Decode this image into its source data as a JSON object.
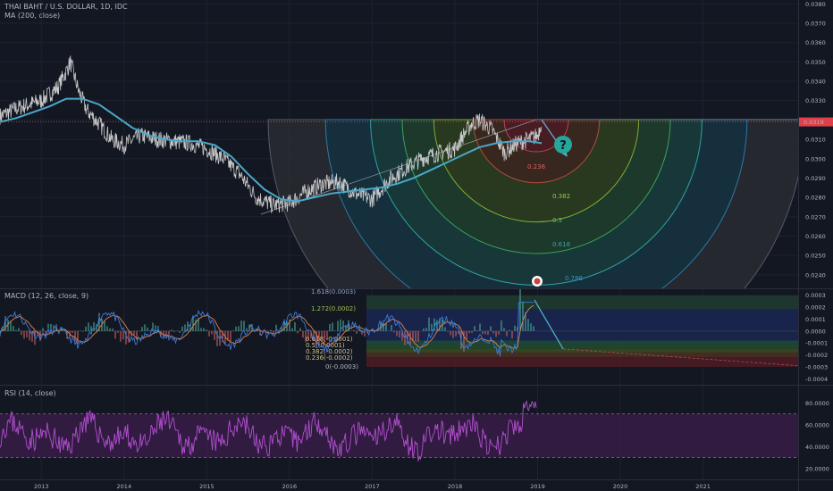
{
  "header": {
    "symbol_title": "THAI BAHT / U.S. DOLLAR, 1D, IDC",
    "ma_title": "MA (200, close)",
    "macd_title": "MACD (12, 26, close, 9)",
    "rsi_title": "RSI (14, close)"
  },
  "current_price_label": "0.0319",
  "question_mark": "?",
  "colors": {
    "background": "#131722",
    "grid": "#1e2230",
    "price_line": "#c8c8c8",
    "ma_line": "#4aa8c8",
    "macd_line": "#3c7bd6",
    "signal_line": "#e0824a",
    "hist_up": "#4fb9a6",
    "hist_down": "#e06767",
    "rsi_line": "#b34fd0",
    "rsi_band": "#3a1d4a",
    "marker_teal": "#26a69a"
  },
  "chart_data": [
    {
      "type": "line",
      "panel": "price",
      "title": "THAI BAHT / U.S. DOLLAR, 1D, IDC",
      "x_ticks": [
        "2013",
        "2014",
        "2015",
        "2016",
        "2017",
        "2018",
        "2019",
        "2020",
        "2021"
      ],
      "y_ticks": [
        "0.0380",
        "0.0370",
        "0.0360",
        "0.0350",
        "0.0340",
        "0.0330",
        "0.0320",
        "0.0310",
        "0.0300",
        "0.0290",
        "0.0280",
        "0.0270",
        "0.0260",
        "0.0250",
        "0.0240"
      ],
      "ylim": [
        0.0233,
        0.0382
      ],
      "xlim": [
        2012.5,
        2022.15
      ],
      "series": [
        {
          "name": "close",
          "x": [
            2012.5,
            2012.7,
            2012.85,
            2013.0,
            2013.2,
            2013.3,
            2013.35,
            2013.45,
            2013.55,
            2013.7,
            2013.85,
            2014.0,
            2014.2,
            2014.4,
            2014.6,
            2014.8,
            2015.0,
            2015.2,
            2015.4,
            2015.6,
            2015.8,
            2016.0,
            2016.2,
            2016.4,
            2016.6,
            2016.8,
            2017.0,
            2017.2,
            2017.4,
            2017.6,
            2017.8,
            2018.0,
            2018.1,
            2018.2,
            2018.3,
            2018.45,
            2018.6,
            2018.75,
            2018.9,
            2019.0,
            2019.05
          ],
          "values": [
            0.0322,
            0.0326,
            0.0328,
            0.033,
            0.0337,
            0.0345,
            0.035,
            0.0335,
            0.0325,
            0.0318,
            0.031,
            0.0307,
            0.0312,
            0.031,
            0.0309,
            0.0308,
            0.0305,
            0.03,
            0.0292,
            0.028,
            0.0276,
            0.0277,
            0.0283,
            0.0287,
            0.0288,
            0.0282,
            0.0279,
            0.0289,
            0.0295,
            0.03,
            0.0303,
            0.0305,
            0.0312,
            0.0318,
            0.032,
            0.0315,
            0.0303,
            0.0308,
            0.031,
            0.0312,
            0.032
          ]
        },
        {
          "name": "MA (200, close)",
          "x": [
            2012.5,
            2012.7,
            2012.9,
            2013.1,
            2013.3,
            2013.5,
            2013.7,
            2013.9,
            2014.1,
            2014.3,
            2014.5,
            2014.7,
            2014.9,
            2015.1,
            2015.3,
            2015.5,
            2015.7,
            2015.9,
            2016.1,
            2016.3,
            2016.5,
            2016.7,
            2016.9,
            2017.1,
            2017.3,
            2017.5,
            2017.7,
            2017.9,
            2018.1,
            2018.3,
            2018.5,
            2018.7,
            2018.9,
            2019.05
          ],
          "values": [
            0.0319,
            0.0321,
            0.0324,
            0.0327,
            0.0331,
            0.0331,
            0.0328,
            0.0322,
            0.0316,
            0.0312,
            0.031,
            0.0309,
            0.0309,
            0.0307,
            0.0301,
            0.0292,
            0.0284,
            0.0279,
            0.0278,
            0.028,
            0.0282,
            0.0283,
            0.0284,
            0.0285,
            0.0287,
            0.029,
            0.0294,
            0.0298,
            0.0302,
            0.0306,
            0.0308,
            0.0309,
            0.0309,
            0.0308
          ]
        }
      ],
      "fib_levels": [
        "0.236",
        "0.382",
        "0.5",
        "0.618",
        "0.786"
      ]
    },
    {
      "type": "line",
      "panel": "macd",
      "title": "MACD (12, 26, close, 9)",
      "y_ticks": [
        "0.0003",
        "0.0002",
        "0.0001",
        "0.0000",
        "-0.0001",
        "-0.0002",
        "-0.0003",
        "-0.0004"
      ],
      "ylim": [
        -0.00045,
        0.00035
      ],
      "fib_labels": [
        "1.618(0.0003)",
        "1.272(0.0002)",
        "0.618(-0.0001)",
        "0.5(-0.0001)",
        "0.382(-0.0002)",
        "0.236(-0.0002)",
        "0(-0.0003)"
      ]
    },
    {
      "type": "line",
      "panel": "rsi",
      "title": "RSI (14, close)",
      "y_ticks": [
        "80.0000",
        "60.0000",
        "40.0000",
        "20.0000"
      ],
      "ylim": [
        10,
        95
      ],
      "bands": [
        30,
        70
      ]
    }
  ]
}
